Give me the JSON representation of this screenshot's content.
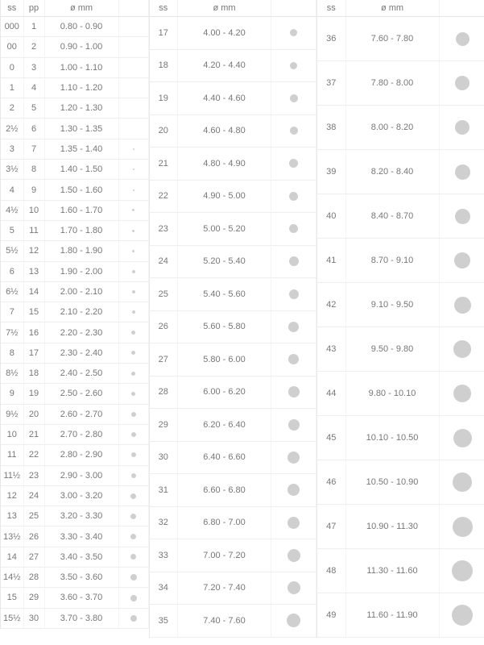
{
  "headers": {
    "ss": "ss",
    "pp": "pp",
    "mm": "ø mm"
  },
  "dot_color": "#cfcfcf",
  "col1": {
    "widths": {
      "ss": 28,
      "pp": 26,
      "mm": 92,
      "dot": 37
    },
    "rows": [
      {
        "ss": "000",
        "pp": "1",
        "mm": "0.80 - 0.90",
        "d": 0
      },
      {
        "ss": "00",
        "pp": "2",
        "mm": "0.90 - 1.00",
        "d": 0
      },
      {
        "ss": "0",
        "pp": "3",
        "mm": "1.00 - 1.10",
        "d": 0
      },
      {
        "ss": "1",
        "pp": "4",
        "mm": "1.10 - 1.20",
        "d": 0
      },
      {
        "ss": "2",
        "pp": "5",
        "mm": "1.20 - 1.30",
        "d": 0
      },
      {
        "ss": "2½",
        "pp": "6",
        "mm": "1.30 - 1.35",
        "d": 0
      },
      {
        "ss": "3",
        "pp": "7",
        "mm": "1.35 - 1.40",
        "d": 2
      },
      {
        "ss": "3½",
        "pp": "8",
        "mm": "1.40 - 1.50",
        "d": 2
      },
      {
        "ss": "4",
        "pp": "9",
        "mm": "1.50 - 1.60",
        "d": 2
      },
      {
        "ss": "4½",
        "pp": "10",
        "mm": "1.60 - 1.70",
        "d": 3
      },
      {
        "ss": "5",
        "pp": "11",
        "mm": "1.70 - 1.80",
        "d": 3
      },
      {
        "ss": "5½",
        "pp": "12",
        "mm": "1.80 - 1.90",
        "d": 3
      },
      {
        "ss": "6",
        "pp": "13",
        "mm": "1.90 - 2.00",
        "d": 4
      },
      {
        "ss": "6½",
        "pp": "14",
        "mm": "2.00 - 2.10",
        "d": 4
      },
      {
        "ss": "7",
        "pp": "15",
        "mm": "2.10 - 2.20",
        "d": 4
      },
      {
        "ss": "7½",
        "pp": "16",
        "mm": "2.20 - 2.30",
        "d": 5
      },
      {
        "ss": "8",
        "pp": "17",
        "mm": "2.30 - 2.40",
        "d": 5
      },
      {
        "ss": "8½",
        "pp": "18",
        "mm": "2.40 - 2.50",
        "d": 5
      },
      {
        "ss": "9",
        "pp": "19",
        "mm": "2.50 - 2.60",
        "d": 5
      },
      {
        "ss": "9½",
        "pp": "20",
        "mm": "2.60 - 2.70",
        "d": 6
      },
      {
        "ss": "10",
        "pp": "21",
        "mm": "2.70 - 2.80",
        "d": 6
      },
      {
        "ss": "11",
        "pp": "22",
        "mm": "2.80 - 2.90",
        "d": 6
      },
      {
        "ss": "11½",
        "pp": "23",
        "mm": "2.90 - 3.00",
        "d": 6
      },
      {
        "ss": "12",
        "pp": "24",
        "mm": "3.00 - 3.20",
        "d": 7
      },
      {
        "ss": "13",
        "pp": "25",
        "mm": "3.20 - 3.30",
        "d": 7
      },
      {
        "ss": "13½",
        "pp": "26",
        "mm": "3.30 - 3.40",
        "d": 7
      },
      {
        "ss": "14",
        "pp": "27",
        "mm": "3.40 - 3.50",
        "d": 7
      },
      {
        "ss": "14½",
        "pp": "28",
        "mm": "3.50 - 3.60",
        "d": 8
      },
      {
        "ss": "15",
        "pp": "29",
        "mm": "3.60 - 3.70",
        "d": 8
      },
      {
        "ss": "15½",
        "pp": "30",
        "mm": "3.70 - 3.80",
        "d": 8
      }
    ]
  },
  "col2": {
    "widths": {
      "ss": 35,
      "mm": 116,
      "dot": 56
    },
    "rows": [
      {
        "ss": "17",
        "mm": "4.00 - 4.20",
        "d": 9
      },
      {
        "ss": "18",
        "mm": "4.20 - 4.40",
        "d": 9
      },
      {
        "ss": "19",
        "mm": "4.40 - 4.60",
        "d": 10
      },
      {
        "ss": "20",
        "mm": "4.60 - 4.80",
        "d": 10
      },
      {
        "ss": "21",
        "mm": "4.80 - 4.90",
        "d": 11
      },
      {
        "ss": "22",
        "mm": "4.90 - 5.00",
        "d": 11
      },
      {
        "ss": "23",
        "mm": "5.00 - 5.20",
        "d": 11
      },
      {
        "ss": "24",
        "mm": "5.20 - 5.40",
        "d": 12
      },
      {
        "ss": "25",
        "mm": "5.40 - 5.60",
        "d": 12
      },
      {
        "ss": "26",
        "mm": "5.60 - 5.80",
        "d": 13
      },
      {
        "ss": "27",
        "mm": "5.80 - 6.00",
        "d": 13
      },
      {
        "ss": "28",
        "mm": "6.00 - 6.20",
        "d": 14
      },
      {
        "ss": "29",
        "mm": "6.20 - 6.40",
        "d": 14
      },
      {
        "ss": "30",
        "mm": "6.40 - 6.60",
        "d": 15
      },
      {
        "ss": "31",
        "mm": "6.60 - 6.80",
        "d": 15
      },
      {
        "ss": "32",
        "mm": "6.80 - 7.00",
        "d": 15
      },
      {
        "ss": "33",
        "mm": "7.00 - 7.20",
        "d": 16
      },
      {
        "ss": "34",
        "mm": "7.20 - 7.40",
        "d": 16
      },
      {
        "ss": "35",
        "mm": "7.40 - 7.60",
        "d": 17
      }
    ]
  },
  "col3": {
    "widths": {
      "ss": 35,
      "mm": 116,
      "dot": 58
    },
    "rows": [
      {
        "ss": "36",
        "mm": "7.60 - 7.80",
        "d": 17
      },
      {
        "ss": "37",
        "mm": "7.80 - 8.00",
        "d": 18
      },
      {
        "ss": "38",
        "mm": "8.00 - 8.20",
        "d": 18
      },
      {
        "ss": "39",
        "mm": "8.20 - 8.40",
        "d": 19
      },
      {
        "ss": "40",
        "mm": "8.40 - 8.70",
        "d": 19
      },
      {
        "ss": "41",
        "mm": "8.70 - 9.10",
        "d": 20
      },
      {
        "ss": "42",
        "mm": "9.10 - 9.50",
        "d": 21
      },
      {
        "ss": "43",
        "mm": "9.50 - 9.80",
        "d": 22
      },
      {
        "ss": "44",
        "mm": "9.80 - 10.10",
        "d": 22
      },
      {
        "ss": "45",
        "mm": "10.10 - 10.50",
        "d": 23
      },
      {
        "ss": "46",
        "mm": "10.50 - 10.90",
        "d": 24
      },
      {
        "ss": "47",
        "mm": "10.90 - 11.30",
        "d": 25
      },
      {
        "ss": "48",
        "mm": "11.30 - 11.60",
        "d": 26
      },
      {
        "ss": "49",
        "mm": "11.60 - 11.90",
        "d": 26
      }
    ]
  }
}
